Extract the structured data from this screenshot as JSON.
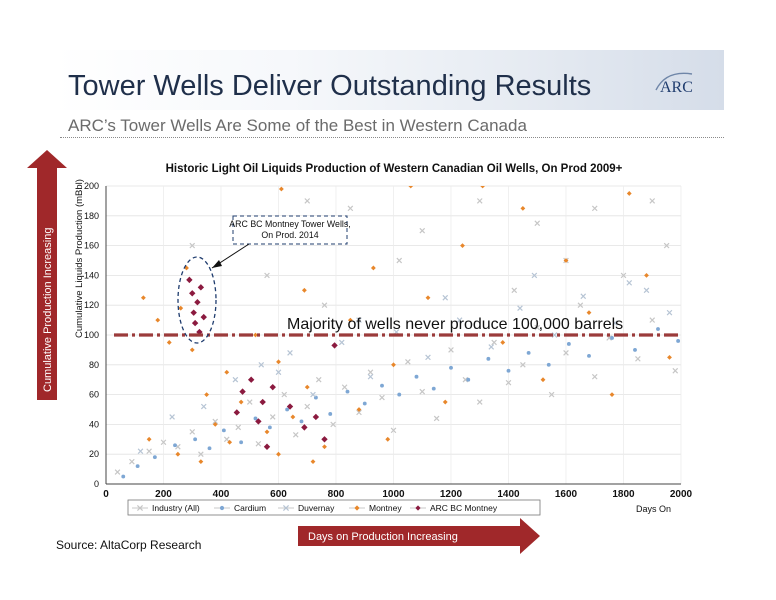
{
  "slide": {
    "title": "Tower Wells Deliver Outstanding Results",
    "logo_text": "ARC",
    "subtitle": "ARC’s Tower Wells Are Some of the Best in Western Canada",
    "source": "Source: AltaCorp Research",
    "vertical_arrow_label": "Cumulative Production Increasing",
    "horizontal_arrow_label": "Days on Production Increasing"
  },
  "colors": {
    "title_text": "#1f2f4a",
    "arrow_fill": "#a0282a",
    "reference_line": "#9b3b3b",
    "industry": "#c6c6c6",
    "cardium": "#7ea7d4",
    "duvernay": "#b6c4d4",
    "montney": "#e8872b",
    "arc_bc_montney": "#8b1a3f"
  },
  "chart_data": {
    "type": "scatter",
    "title": "Historic Light Oil Liquids Production of Western Canadian Oil Wells, On Prod 2009+",
    "xlabel": "Days On",
    "ylabel": "Cumulative Liquids Production (mBbl)",
    "xlim": [
      0,
      2000
    ],
    "ylim": [
      0,
      200
    ],
    "x_ticks": [
      0,
      200,
      400,
      600,
      800,
      1000,
      1200,
      1400,
      1600,
      1800,
      2000
    ],
    "y_ticks": [
      0,
      20,
      40,
      60,
      80,
      100,
      120,
      140,
      160,
      180,
      200
    ],
    "grid": true,
    "legend_position": "bottom",
    "reference_line": {
      "y": 100,
      "label": "Majority of wells never produce 100,000 barrels"
    },
    "annotation": {
      "text_line1": "ARC BC Montney Tower Wells,",
      "text_line2": "On Prod. 2014",
      "points_to_x": 310,
      "points_to_y": 120
    },
    "series": [
      {
        "name": "Industry (All)",
        "marker": "x",
        "points": [
          [
            40,
            8
          ],
          [
            90,
            15
          ],
          [
            150,
            22
          ],
          [
            200,
            28
          ],
          [
            250,
            25
          ],
          [
            300,
            35
          ],
          [
            330,
            20
          ],
          [
            380,
            42
          ],
          [
            420,
            30
          ],
          [
            460,
            38
          ],
          [
            500,
            55
          ],
          [
            530,
            27
          ],
          [
            580,
            45
          ],
          [
            620,
            60
          ],
          [
            660,
            33
          ],
          [
            700,
            52
          ],
          [
            740,
            70
          ],
          [
            790,
            40
          ],
          [
            830,
            65
          ],
          [
            880,
            48
          ],
          [
            920,
            75
          ],
          [
            960,
            58
          ],
          [
            1000,
            36
          ],
          [
            1050,
            82
          ],
          [
            1100,
            62
          ],
          [
            1150,
            44
          ],
          [
            1200,
            90
          ],
          [
            1250,
            70
          ],
          [
            1300,
            55
          ],
          [
            1350,
            95
          ],
          [
            1400,
            68
          ],
          [
            1450,
            80
          ],
          [
            1500,
            105
          ],
          [
            1550,
            60
          ],
          [
            1600,
            88
          ],
          [
            1650,
            120
          ],
          [
            1700,
            72
          ],
          [
            1750,
            98
          ],
          [
            1800,
            140
          ],
          [
            1850,
            84
          ],
          [
            1900,
            110
          ],
          [
            1950,
            160
          ],
          [
            1980,
            76
          ],
          [
            300,
            160
          ],
          [
            700,
            190
          ],
          [
            850,
            185
          ],
          [
            1100,
            170
          ],
          [
            1300,
            190
          ],
          [
            1500,
            175
          ],
          [
            1700,
            185
          ],
          [
            1900,
            190
          ],
          [
            1020,
            150
          ],
          [
            1600,
            150
          ],
          [
            1420,
            130
          ],
          [
            560,
            140
          ],
          [
            760,
            120
          ]
        ]
      },
      {
        "name": "Cardium",
        "marker": "circle",
        "points": [
          [
            60,
            5
          ],
          [
            110,
            12
          ],
          [
            170,
            18
          ],
          [
            240,
            26
          ],
          [
            310,
            30
          ],
          [
            360,
            24
          ],
          [
            410,
            36
          ],
          [
            470,
            28
          ],
          [
            520,
            44
          ],
          [
            570,
            38
          ],
          [
            630,
            50
          ],
          [
            680,
            42
          ],
          [
            730,
            58
          ],
          [
            780,
            47
          ],
          [
            840,
            62
          ],
          [
            900,
            54
          ],
          [
            960,
            66
          ],
          [
            1020,
            60
          ],
          [
            1080,
            72
          ],
          [
            1140,
            64
          ],
          [
            1200,
            78
          ],
          [
            1260,
            70
          ],
          [
            1330,
            84
          ],
          [
            1400,
            76
          ],
          [
            1470,
            88
          ],
          [
            1540,
            80
          ],
          [
            1610,
            94
          ],
          [
            1680,
            86
          ],
          [
            1760,
            98
          ],
          [
            1840,
            90
          ],
          [
            1920,
            104
          ],
          [
            1990,
            96
          ]
        ]
      },
      {
        "name": "Duvernay",
        "marker": "x",
        "points": [
          [
            120,
            22
          ],
          [
            230,
            45
          ],
          [
            340,
            52
          ],
          [
            450,
            70
          ],
          [
            540,
            80
          ],
          [
            640,
            88
          ],
          [
            720,
            60
          ],
          [
            820,
            95
          ],
          [
            920,
            72
          ],
          [
            1010,
            102
          ],
          [
            1120,
            85
          ],
          [
            1230,
            110
          ],
          [
            1340,
            92
          ],
          [
            1440,
            118
          ],
          [
            1560,
            100
          ],
          [
            1660,
            126
          ],
          [
            1770,
            108
          ],
          [
            1880,
            130
          ],
          [
            1960,
            115
          ],
          [
            600,
            75
          ],
          [
            880,
            110
          ],
          [
            1180,
            125
          ],
          [
            1490,
            140
          ],
          [
            1820,
            135
          ]
        ]
      },
      {
        "name": "Montney",
        "marker": "diamond",
        "points": [
          [
            130,
            125
          ],
          [
            180,
            110
          ],
          [
            220,
            95
          ],
          [
            260,
            118
          ],
          [
            280,
            145
          ],
          [
            300,
            90
          ],
          [
            350,
            60
          ],
          [
            380,
            40
          ],
          [
            420,
            75
          ],
          [
            470,
            55
          ],
          [
            520,
            100
          ],
          [
            560,
            35
          ],
          [
            600,
            82
          ],
          [
            610,
            198
          ],
          [
            650,
            45
          ],
          [
            690,
            130
          ],
          [
            700,
            65
          ],
          [
            760,
            25
          ],
          [
            800,
            170
          ],
          [
            850,
            110
          ],
          [
            880,
            50
          ],
          [
            930,
            145
          ],
          [
            980,
            30
          ],
          [
            1000,
            80
          ],
          [
            1060,
            200
          ],
          [
            1120,
            125
          ],
          [
            1180,
            55
          ],
          [
            1240,
            160
          ],
          [
            1310,
            200
          ],
          [
            1380,
            95
          ],
          [
            1450,
            185
          ],
          [
            1520,
            70
          ],
          [
            1600,
            150
          ],
          [
            1680,
            115
          ],
          [
            1760,
            60
          ],
          [
            1820,
            195
          ],
          [
            1880,
            140
          ],
          [
            1960,
            85
          ],
          [
            150,
            30
          ],
          [
            250,
            20
          ],
          [
            330,
            15
          ],
          [
            430,
            28
          ],
          [
            600,
            20
          ],
          [
            720,
            15
          ]
        ]
      },
      {
        "name": "ARC BC Montney",
        "marker": "diamond",
        "points": [
          [
            290,
            137
          ],
          [
            300,
            128
          ],
          [
            305,
            115
          ],
          [
            310,
            108
          ],
          [
            318,
            122
          ],
          [
            325,
            102
          ],
          [
            330,
            132
          ],
          [
            340,
            112
          ],
          [
            455,
            48
          ],
          [
            475,
            62
          ],
          [
            505,
            70
          ],
          [
            530,
            42
          ],
          [
            545,
            55
          ],
          [
            560,
            25
          ],
          [
            580,
            65
          ],
          [
            640,
            52
          ],
          [
            690,
            38
          ],
          [
            730,
            45
          ],
          [
            760,
            30
          ],
          [
            795,
            93
          ]
        ]
      }
    ]
  }
}
